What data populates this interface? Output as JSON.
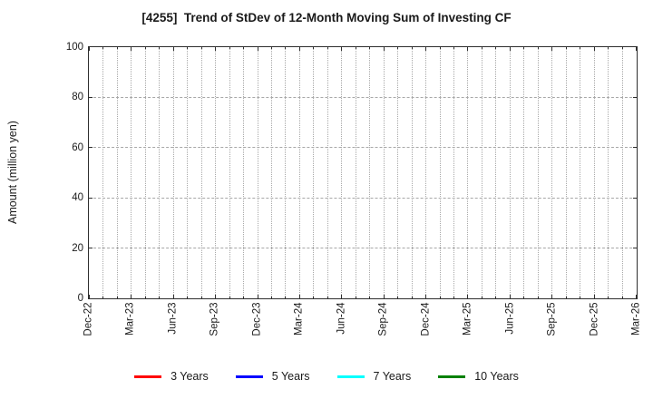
{
  "chart_data": {
    "type": "line",
    "title": "[4255]  Trend of StDev of 12-Month Moving Sum of Investing CF",
    "ylabel": "Amount (million yen)",
    "xlabel": "",
    "ylim": [
      0,
      100
    ],
    "yticks": [
      0,
      20,
      40,
      60,
      80,
      100
    ],
    "x_tick_labels": [
      "Dec-22",
      "Mar-23",
      "Jun-23",
      "Sep-23",
      "Dec-23",
      "Mar-24",
      "Jun-24",
      "Sep-24",
      "Dec-24",
      "Mar-25",
      "Jun-25",
      "Sep-25",
      "Dec-25",
      "Mar-26"
    ],
    "minor_x_divisions_per_tick": 3,
    "grid": true,
    "legend_position": "bottom",
    "series": [
      {
        "name": "3 Years",
        "color": "#ff0000",
        "values": []
      },
      {
        "name": "5 Years",
        "color": "#0000ff",
        "values": []
      },
      {
        "name": "7 Years",
        "color": "#00ffff",
        "values": []
      },
      {
        "name": "10 Years",
        "color": "#008000",
        "values": []
      }
    ]
  }
}
